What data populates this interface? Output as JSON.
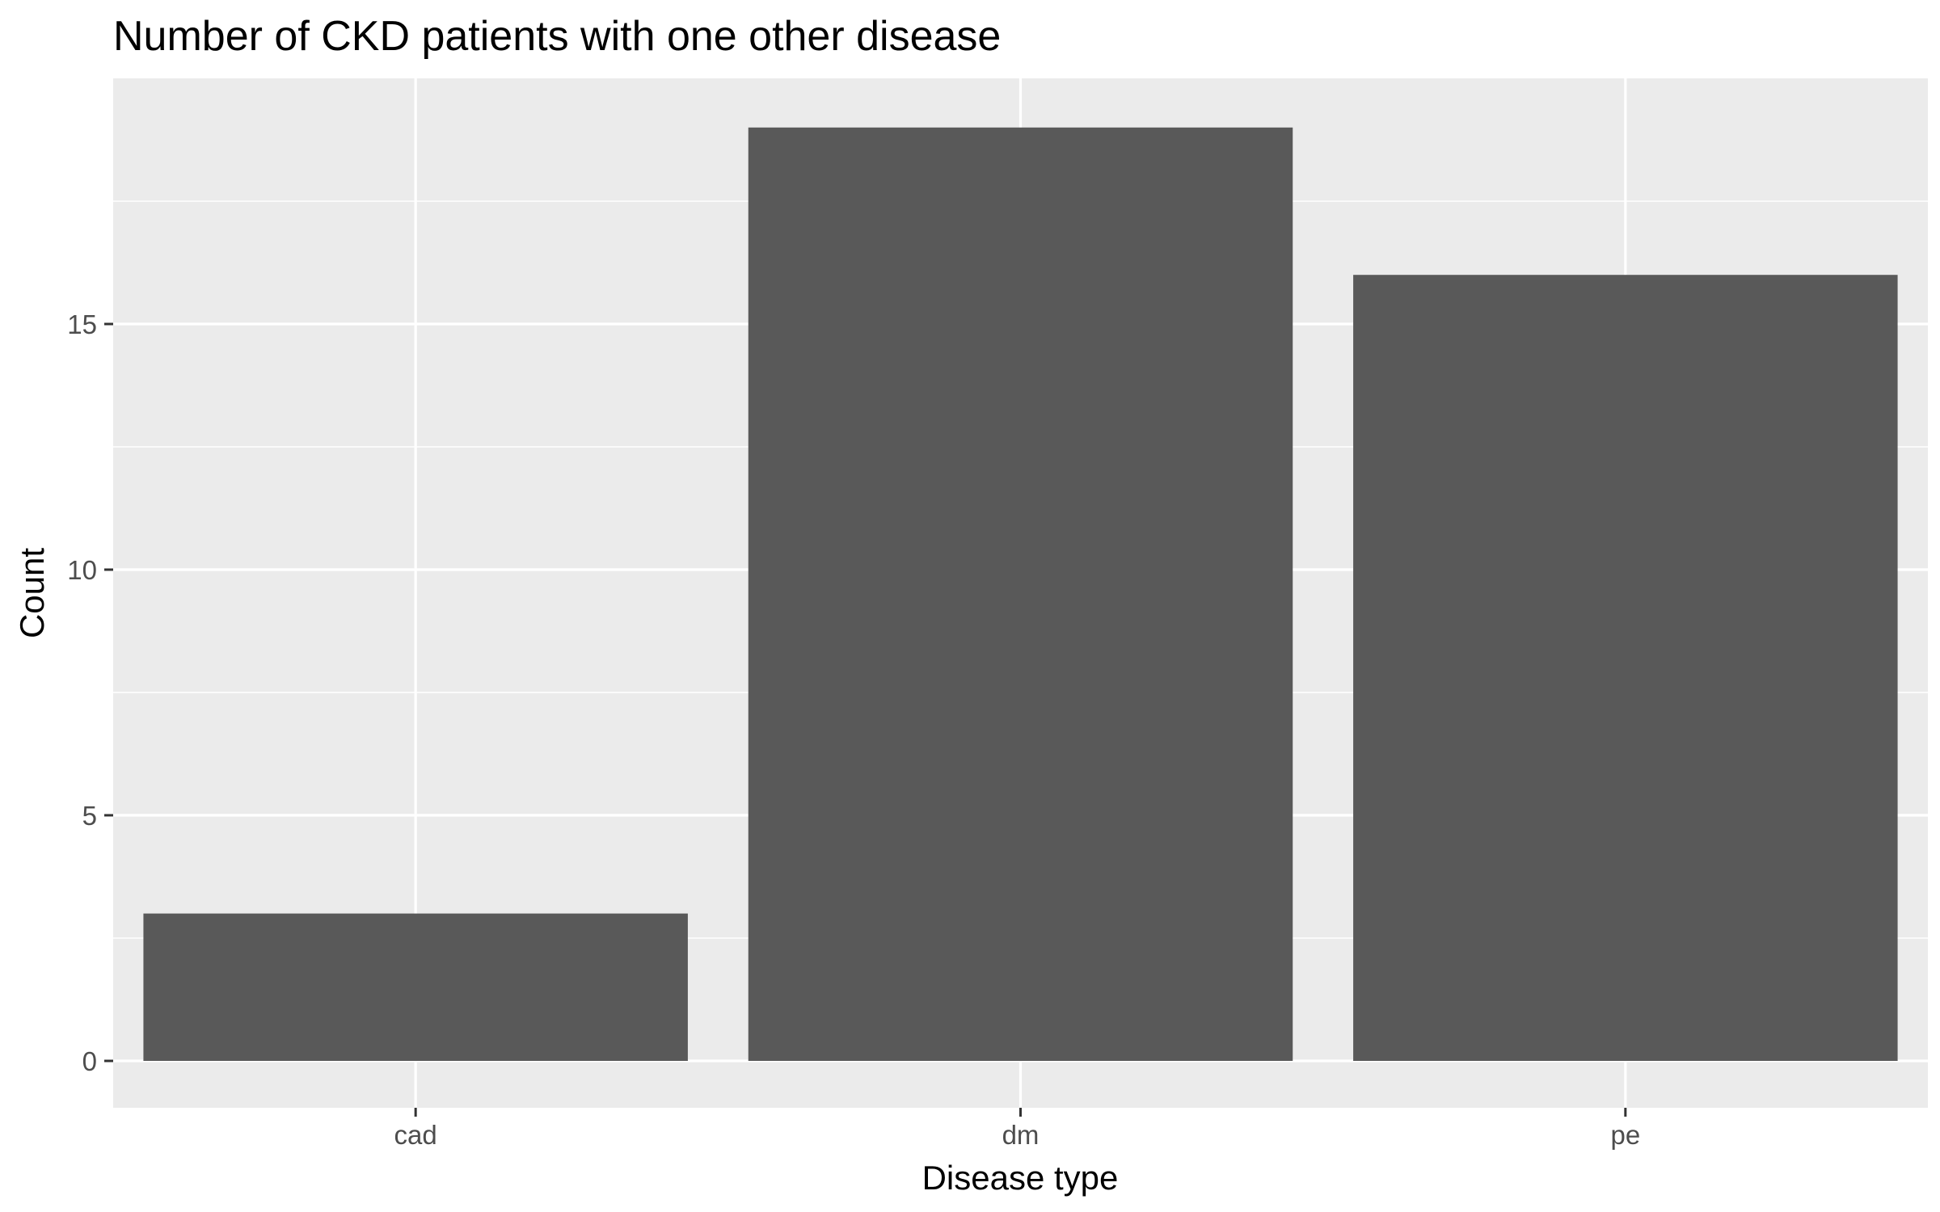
{
  "chart_data": {
    "type": "bar",
    "title": "Number of CKD patients with one other disease",
    "xlabel": "Disease type",
    "ylabel": "Count",
    "categories": [
      "cad",
      "dm",
      "pe"
    ],
    "values": [
      3,
      19,
      16
    ],
    "ylim": [
      0,
      19.95
    ],
    "yticks": [
      0,
      5,
      10,
      15
    ],
    "grid": true,
    "legend": "none",
    "colors": {
      "panel_background": "#ebebeb",
      "grid": "#ffffff",
      "bar": "#595959",
      "tick_label": "#4d4d4d",
      "tick_mark": "#333333",
      "text": "#000000"
    }
  }
}
